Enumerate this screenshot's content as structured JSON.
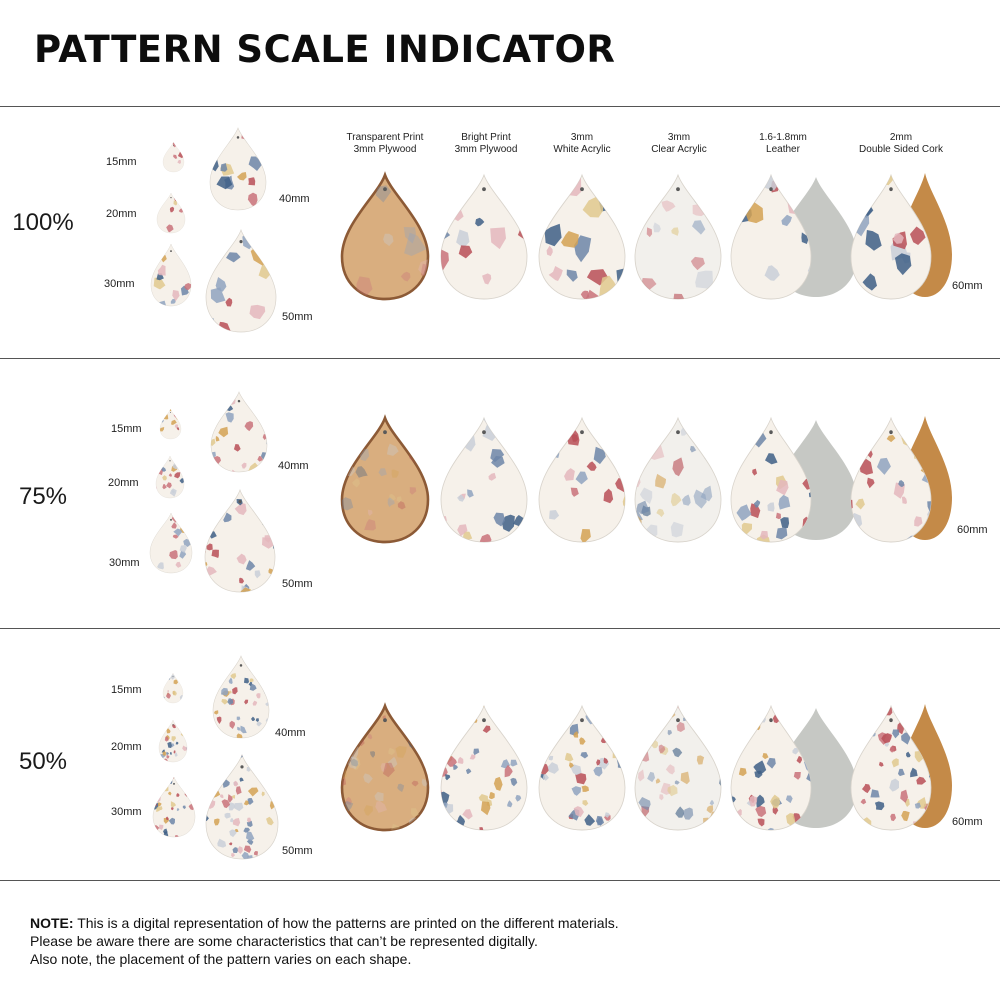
{
  "title": "PATTERN SCALE INDICATOR",
  "materials": [
    {
      "line1": "Transparent Print",
      "line2": "3mm Plywood"
    },
    {
      "line1": "Bright Print",
      "line2": "3mm Plywood"
    },
    {
      "line1": "3mm",
      "line2": "White Acrylic"
    },
    {
      "line1": "3mm",
      "line2": "Clear Acrylic"
    },
    {
      "line1": "1.6-1.8mm",
      "line2": "Leather"
    },
    {
      "line1": "2mm",
      "line2": "Double Sided Cork"
    }
  ],
  "sizes": {
    "s15": "15mm",
    "s20": "20mm",
    "s30": "30mm",
    "s40": "40mm",
    "s50": "50mm",
    "s60": "60mm"
  },
  "sections": [
    {
      "scale": "100%"
    },
    {
      "scale": "75%"
    },
    {
      "scale": "50%"
    }
  ],
  "note": {
    "bold": "NOTE:",
    "line1": " This is a digital representation of how the patterns are printed on the different materials.",
    "line2": "Please be aware there are some characteristics that can’t be represented digitally.",
    "line3": "Also note, the placement of the pattern varies on each shape."
  },
  "colors": {
    "terrazzo": [
      "#3e5f86",
      "#c9727a",
      "#d4a253",
      "#e4b7bd",
      "#8fa3bf",
      "#b84f57",
      "#c9cfd8",
      "#6d86a8",
      "#e0c98e"
    ],
    "base": "#f6f1ea",
    "plywood": "#d9ae7f",
    "plywood_edge": "#8c5a36",
    "leather_back": "#c6c8c4",
    "cork": "#c48a48",
    "clear_acrylic": "#f2f0ec"
  }
}
